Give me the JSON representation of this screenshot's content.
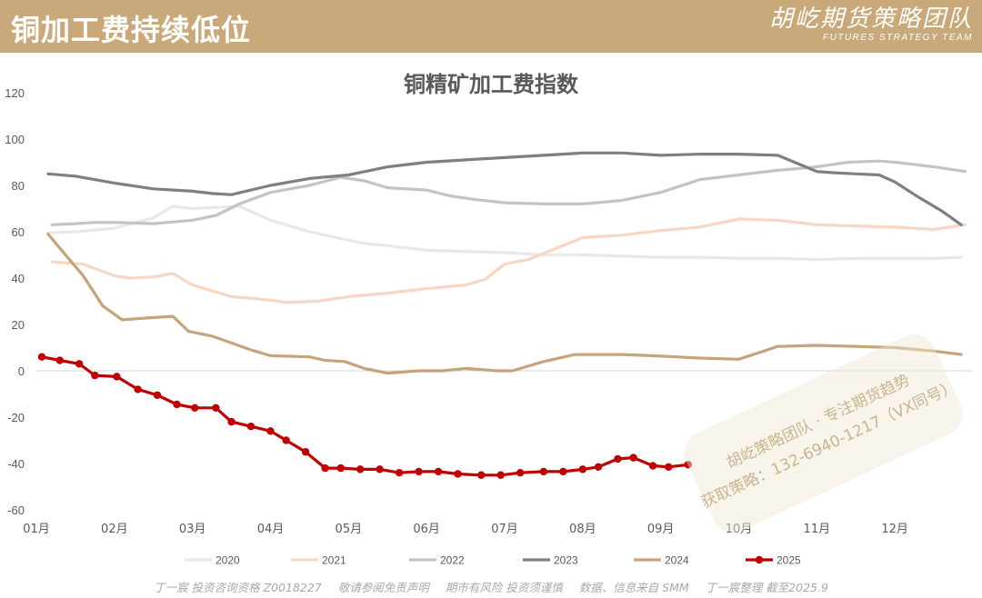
{
  "header": {
    "title": "铜加工费持续低位",
    "brand_cn": "胡屹期货策略团队",
    "brand_en": "FUTURES STRATEGY TEAM"
  },
  "colors": {
    "header_bg": "#c9a97a",
    "2020": "#e8e8e8",
    "2021": "#f7d7c4",
    "2022": "#c3c3c3",
    "2023": "#7f7f7f",
    "2024": "#c5a47a",
    "2025": "#c00000"
  },
  "watermark": {
    "line1": "胡屹策略团队 · 专注期货趋势",
    "line2": "获取策略：132-6940-1217（VX同号）"
  },
  "footer": {
    "part1": "丁一宸 投资咨询资格 Z0018227",
    "part2": "敬请参阅免责声明",
    "part3": "期市有风险 投资须谨慎",
    "part4": "数据、信息来自 SMM",
    "part5": "丁一宸整理 截至2025.9"
  },
  "chart_data": {
    "type": "line",
    "title": "铜精矿加工费指数",
    "xlabel": "",
    "ylabel": "",
    "ylim": [
      -60,
      120
    ],
    "yticks": [
      -60,
      -40,
      -20,
      0,
      20,
      40,
      60,
      80,
      100,
      120
    ],
    "xlim": [
      1,
      13
    ],
    "month_ticks": [
      "01月",
      "02月",
      "03月",
      "04月",
      "05月",
      "06月",
      "07月",
      "08月",
      "09月",
      "10月",
      "11月",
      "12月"
    ],
    "grid": false,
    "legend_position": "bottom",
    "series": [
      {
        "name": "2020",
        "x": [
          1.15,
          1.5,
          2.0,
          2.5,
          2.75,
          3.0,
          3.3,
          3.6,
          4.0,
          4.5,
          4.9,
          5.2,
          5.5,
          6.0,
          6.5,
          7.0,
          7.5,
          8.0,
          8.5,
          9.0,
          9.5,
          10.0,
          10.5,
          11.0,
          11.5,
          12.0,
          12.5,
          12.85
        ],
        "y": [
          59.5,
          60,
          61.5,
          66,
          71,
          70,
          70.5,
          71,
          65,
          60,
          57,
          55,
          54,
          52,
          51.5,
          51,
          50,
          50,
          49.5,
          49,
          49,
          48.5,
          48.5,
          48,
          48.5,
          48.5,
          48.5,
          49
        ]
      },
      {
        "name": "2021",
        "x": [
          1.2,
          1.6,
          2.0,
          2.2,
          2.5,
          2.75,
          3.0,
          3.5,
          4.0,
          4.2,
          4.6,
          5.0,
          5.5,
          6.0,
          6.5,
          6.75,
          7.0,
          7.3,
          7.6,
          8.0,
          8.5,
          9.0,
          9.5,
          10.0,
          10.5,
          11.0,
          11.5,
          12.0,
          12.5,
          12.9
        ],
        "y": [
          47,
          46,
          41,
          40,
          40.5,
          42,
          37,
          32,
          30.5,
          29.5,
          30,
          32,
          33.5,
          35.5,
          37,
          39.5,
          46,
          48,
          52,
          57.5,
          58.5,
          60.5,
          62,
          65.5,
          65,
          63,
          62.5,
          62,
          61,
          63
        ]
      },
      {
        "name": "2022",
        "x": [
          1.2,
          1.5,
          1.75,
          2.0,
          2.5,
          3.0,
          3.3,
          3.6,
          4.0,
          4.5,
          4.9,
          5.2,
          5.5,
          6.0,
          6.3,
          6.6,
          7.0,
          7.5,
          8.0,
          8.5,
          9.0,
          9.5,
          10.0,
          10.5,
          11.0,
          11.4,
          11.8,
          12.0,
          12.5,
          12.9
        ],
        "y": [
          63,
          63.5,
          64,
          64,
          63.5,
          65,
          67,
          72,
          77,
          80,
          83.5,
          82,
          79,
          78,
          75.5,
          74,
          72.5,
          72,
          72,
          73.5,
          77,
          82.5,
          84.5,
          86.5,
          88,
          90,
          90.5,
          90,
          88,
          86
        ]
      },
      {
        "name": "2023",
        "x": [
          1.15,
          1.5,
          2.0,
          2.5,
          3.0,
          3.25,
          3.5,
          4.0,
          4.5,
          5.0,
          5.5,
          6.0,
          6.5,
          7.0,
          7.5,
          8.0,
          8.5,
          9.0,
          9.5,
          10.0,
          10.5,
          11.0,
          11.2,
          11.5,
          11.8,
          12.0,
          12.3,
          12.6,
          12.85
        ],
        "y": [
          85,
          84,
          81,
          78.5,
          77.5,
          76.5,
          76,
          80,
          83,
          84.5,
          88,
          90,
          91,
          92,
          93,
          94,
          94,
          93,
          93.5,
          93.5,
          93,
          86,
          85.5,
          85,
          84.5,
          81.5,
          75,
          69,
          63
        ]
      },
      {
        "name": "2024",
        "x": [
          1.15,
          1.4,
          1.6,
          1.85,
          2.1,
          2.5,
          2.75,
          2.95,
          3.25,
          3.5,
          3.75,
          4.0,
          4.5,
          4.7,
          4.95,
          5.2,
          5.5,
          5.9,
          6.2,
          6.5,
          6.9,
          7.1,
          7.5,
          7.9,
          8.5,
          8.9,
          9.5,
          10.0,
          10.5,
          11.0,
          11.5,
          12.0,
          12.5,
          12.85
        ],
        "y": [
          59,
          49,
          41,
          28,
          22,
          23,
          23.5,
          17,
          15,
          12,
          9,
          6.5,
          6,
          4.5,
          4,
          1,
          -1,
          0,
          0,
          1,
          0,
          0,
          4,
          7,
          7,
          6.5,
          5.5,
          5,
          10.5,
          11,
          10.5,
          10,
          8.5,
          7
        ]
      },
      {
        "name": "2025",
        "x": [
          1.07,
          1.3,
          1.55,
          1.75,
          2.03,
          2.3,
          2.55,
          2.8,
          3.03,
          3.3,
          3.5,
          3.75,
          4.0,
          4.2,
          4.45,
          4.7,
          4.9,
          5.15,
          5.4,
          5.65,
          5.9,
          6.15,
          6.4,
          6.7,
          6.95,
          7.2,
          7.5,
          7.75,
          8.0,
          8.2,
          8.45,
          8.65,
          8.9,
          9.1,
          9.35
        ],
        "y": [
          6,
          4.5,
          3,
          -2,
          -2.5,
          -8,
          -10.5,
          -14.5,
          -16,
          -16,
          -22,
          -24,
          -26,
          -30,
          -35,
          -42,
          -42,
          -42.5,
          -42.5,
          -44,
          -43.5,
          -43.5,
          -44.5,
          -45,
          -45,
          -44,
          -43.5,
          -43.5,
          -42.5,
          -41.5,
          -38,
          -37.5,
          -41,
          -41.5,
          -40.5
        ]
      }
    ]
  }
}
